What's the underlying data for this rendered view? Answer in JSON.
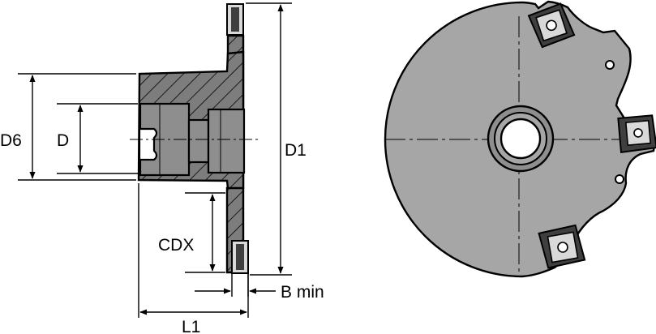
{
  "labels": {
    "d6": "D6",
    "d": "D",
    "d1": "D1",
    "cdx": "CDX",
    "b_min": "B min",
    "l1": "L1"
  },
  "colors": {
    "line": "#000000",
    "body_fill": "#7d7d7d",
    "face_fill": "#a6a6a6",
    "bore_fill": "#8e8e8e",
    "insert_fill": "#d9d9d9",
    "insert_dark": "#3f3f3f",
    "background": "#ffffff"
  },
  "icons": {
    "insert": "cutting-insert-icon",
    "screw": "insert-screw-icon"
  }
}
